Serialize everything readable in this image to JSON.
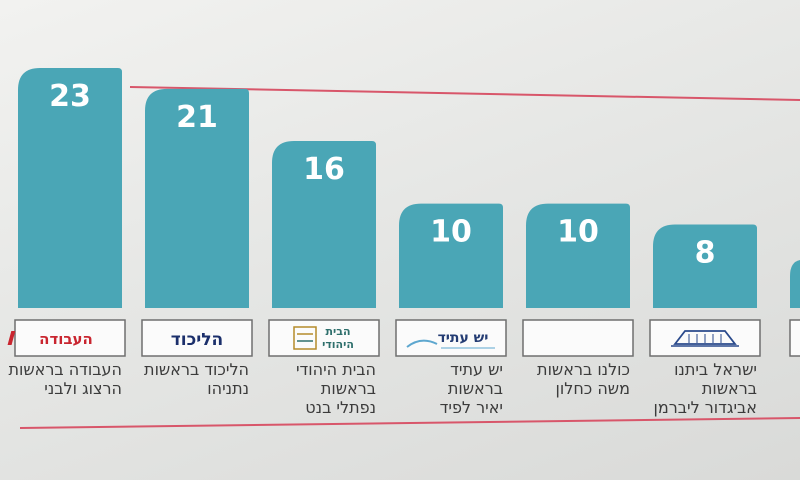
{
  "colors": {
    "bar": "#4aa6b6",
    "line": "#d8566a",
    "logo_border": "#6f6f6f",
    "logo_fill": "#fbfbfb",
    "label_text": "#3b3b3b",
    "avoda_red": "#c9252f",
    "likud_navy": "#1b2f6b",
    "yesh_atid_navy": "#243c73",
    "yesh_atid_blue": "#5da7cf",
    "beit_yehudi_gold": "#b58b2b",
    "beit_yehudi_teal": "#2e6f6c",
    "beiteinu_blue": "#2a4a8c"
  },
  "chart_data": {
    "type": "bar",
    "values": [
      23,
      21,
      16,
      10,
      10,
      8
    ],
    "series": [
      {
        "values": [
          23,
          21,
          16,
          10,
          10,
          8
        ]
      }
    ],
    "parties": [
      {
        "value": 23,
        "label_lines": [
          "העבודה בראשות",
          "הרצוג ולבני"
        ],
        "logo": "avoda-logo",
        "logo_text": "העבודה"
      },
      {
        "value": 21,
        "label_lines": [
          "הליכוד בראשות",
          "נתניהו"
        ],
        "logo": "likud-logo",
        "logo_text": "הליכוד"
      },
      {
        "value": 16,
        "label_lines": [
          "הבית היהודי",
          "בראשות",
          "נפתלי בנט"
        ],
        "logo": "beit-yehudi-logo",
        "logo_text": [
          "הבית",
          "היהודי"
        ]
      },
      {
        "value": 10,
        "label_lines": [
          "יש עתיד",
          "בראשות",
          "יאיר לפיד"
        ],
        "logo": "yesh-atid-logo",
        "logo_text": "יש עתיד"
      },
      {
        "value": 10,
        "label_lines": [
          "כולנו בראשות",
          "משה כחלון"
        ],
        "logo": "kulanu-logo",
        "logo_text": ""
      },
      {
        "value": 8,
        "label_lines": [
          "ישראל ביתנו",
          "בראשות",
          "אביגדור ליברמן"
        ],
        "logo": "beiteinu-logo",
        "logo_text": ""
      }
    ]
  }
}
